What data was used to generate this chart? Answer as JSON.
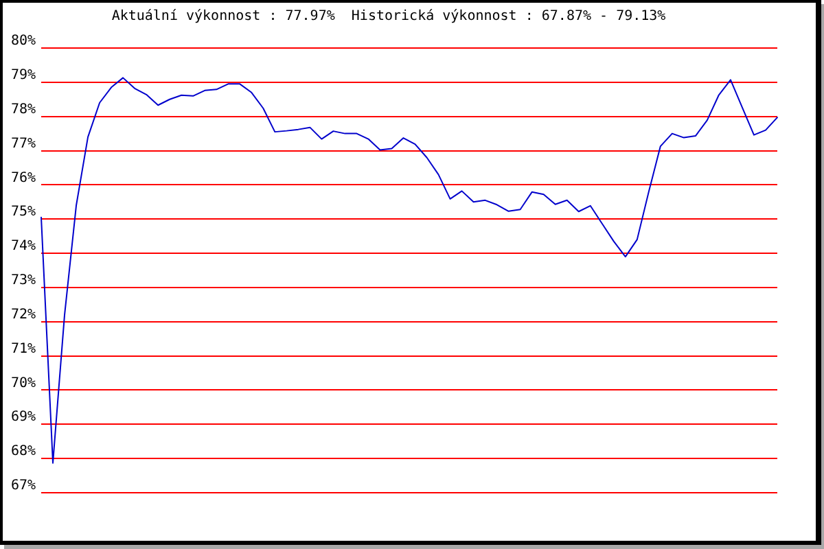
{
  "chart_data": {
    "type": "line",
    "title": "Aktuální výkonnost : 77.97%  Historická výkonnost : 67.87% - 79.13%",
    "categories": [
      null,
      null,
      null,
      null,
      null,
      null,
      null,
      null,
      null,
      null,
      null,
      null,
      null,
      null,
      null,
      null,
      null,
      null,
      null,
      null,
      null,
      null,
      null,
      null,
      null,
      null,
      null,
      null,
      null,
      null,
      null,
      null,
      null,
      null,
      null,
      null,
      null,
      null,
      null,
      null,
      null,
      null,
      null,
      null,
      null,
      null,
      null,
      null,
      null,
      null,
      null,
      null,
      null,
      null,
      null,
      null,
      null,
      null,
      null,
      null,
      null,
      null,
      null,
      null
    ],
    "series": [
      {
        "color": "#0000cc",
        "values": [
          75.05,
          67.87,
          72.2,
          75.4,
          77.4,
          78.4,
          78.85,
          79.13,
          78.82,
          78.64,
          78.33,
          78.5,
          78.62,
          78.6,
          78.76,
          78.79,
          78.95,
          78.95,
          78.7,
          78.24,
          77.55,
          77.58,
          77.62,
          77.68,
          77.34,
          77.57,
          77.5,
          77.5,
          77.34,
          77.02,
          77.06,
          77.37,
          77.19,
          76.8,
          76.3,
          75.59,
          75.82,
          75.5,
          75.55,
          75.42,
          75.23,
          75.28,
          75.79,
          75.72,
          75.43,
          75.55,
          75.22,
          75.39,
          74.87,
          74.35,
          73.9,
          74.4,
          75.8,
          77.13,
          77.5,
          77.38,
          77.43,
          77.89,
          78.63,
          79.07,
          78.26,
          77.46,
          77.6,
          77.97
        ]
      }
    ],
    "ylim": [
      67,
      80
    ],
    "yticks": [
      {
        "value": 67,
        "label": "67%"
      },
      {
        "value": 68,
        "label": "68%"
      },
      {
        "value": 69,
        "label": "69%"
      },
      {
        "value": 70,
        "label": "70%"
      },
      {
        "value": 71,
        "label": "71%"
      },
      {
        "value": 72,
        "label": "72%"
      },
      {
        "value": 73,
        "label": "73%"
      },
      {
        "value": 74,
        "label": "74%"
      },
      {
        "value": 75,
        "label": "75%"
      },
      {
        "value": 76,
        "label": "76%"
      },
      {
        "value": 77,
        "label": "77%"
      },
      {
        "value": 78,
        "label": "78%"
      },
      {
        "value": 79,
        "label": "79%"
      },
      {
        "value": 80,
        "label": "80%"
      }
    ],
    "grid": "y",
    "tick_labels": "y",
    "marker": "none",
    "line_style": "solid"
  }
}
